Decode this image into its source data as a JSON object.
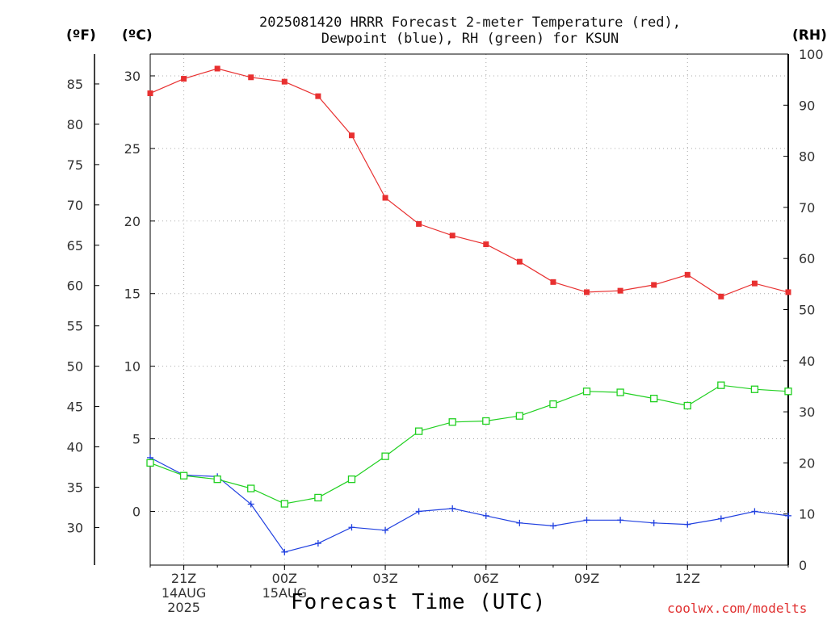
{
  "chart_data": {
    "type": "line",
    "title_line1": "2025081420 HRRR Forecast 2-meter Temperature (red),",
    "title_line2": "Dewpoint (blue), RH (green) for KSUN",
    "units": {
      "fahrenheit": "(ºF)",
      "celsius": "(ºC)",
      "rh": "(RH)"
    },
    "xlabel": "Forecast Time (UTC)",
    "credit": "coolwx.com/modelts",
    "x_hours": [
      0,
      1,
      2,
      3,
      4,
      5,
      6,
      7,
      8,
      9,
      10,
      11,
      12,
      13,
      14,
      15,
      16,
      17,
      18,
      19
    ],
    "x_ticks": [
      {
        "hour": 1,
        "labels": [
          "21Z",
          "14AUG",
          "2025"
        ]
      },
      {
        "hour": 4,
        "labels": [
          "00Z",
          "15AUG"
        ]
      },
      {
        "hour": 7,
        "labels": [
          "03Z"
        ]
      },
      {
        "hour": 10,
        "labels": [
          "06Z"
        ]
      },
      {
        "hour": 13,
        "labels": [
          "09Z"
        ]
      },
      {
        "hour": 16,
        "labels": [
          "12Z"
        ]
      }
    ],
    "celsius_ticks": [
      0,
      5,
      10,
      15,
      20,
      25,
      30
    ],
    "fahrenheit_ticks": [
      30,
      35,
      40,
      45,
      50,
      55,
      60,
      65,
      70,
      75,
      80,
      85
    ],
    "rh_ticks": [
      0,
      10,
      20,
      30,
      40,
      50,
      60,
      70,
      80,
      90,
      100
    ],
    "ylim_celsius": [
      -3.7,
      31.5
    ],
    "ylim_rh": [
      0,
      100
    ],
    "grid": true,
    "series": [
      {
        "color": "#e83030",
        "axis": "celsius",
        "marker": "filled-square",
        "values": [
          28.8,
          29.8,
          30.5,
          29.9,
          29.6,
          28.6,
          25.9,
          21.6,
          19.8,
          19.0,
          18.4,
          17.2,
          15.8,
          15.1,
          15.2,
          15.6,
          16.3,
          14.8,
          15.7,
          15.1
        ]
      },
      {
        "color": "#2040e0",
        "axis": "celsius",
        "marker": "plus",
        "values": [
          3.7,
          2.5,
          2.4,
          0.5,
          -2.8,
          -2.2,
          -1.1,
          -1.3,
          0.0,
          0.2,
          -0.3,
          -0.8,
          -1.0,
          -0.6,
          -0.6,
          -0.8,
          -0.9,
          -0.5,
          0.0,
          -0.3
        ]
      },
      {
        "color": "#20d020",
        "axis": "rh",
        "marker": "open-square",
        "values": [
          20.0,
          17.5,
          16.8,
          15.0,
          12.0,
          13.2,
          16.8,
          21.3,
          26.2,
          28.0,
          28.2,
          29.2,
          31.5,
          34.0,
          33.8,
          32.6,
          31.2,
          35.2,
          34.4,
          34.0
        ]
      }
    ]
  }
}
